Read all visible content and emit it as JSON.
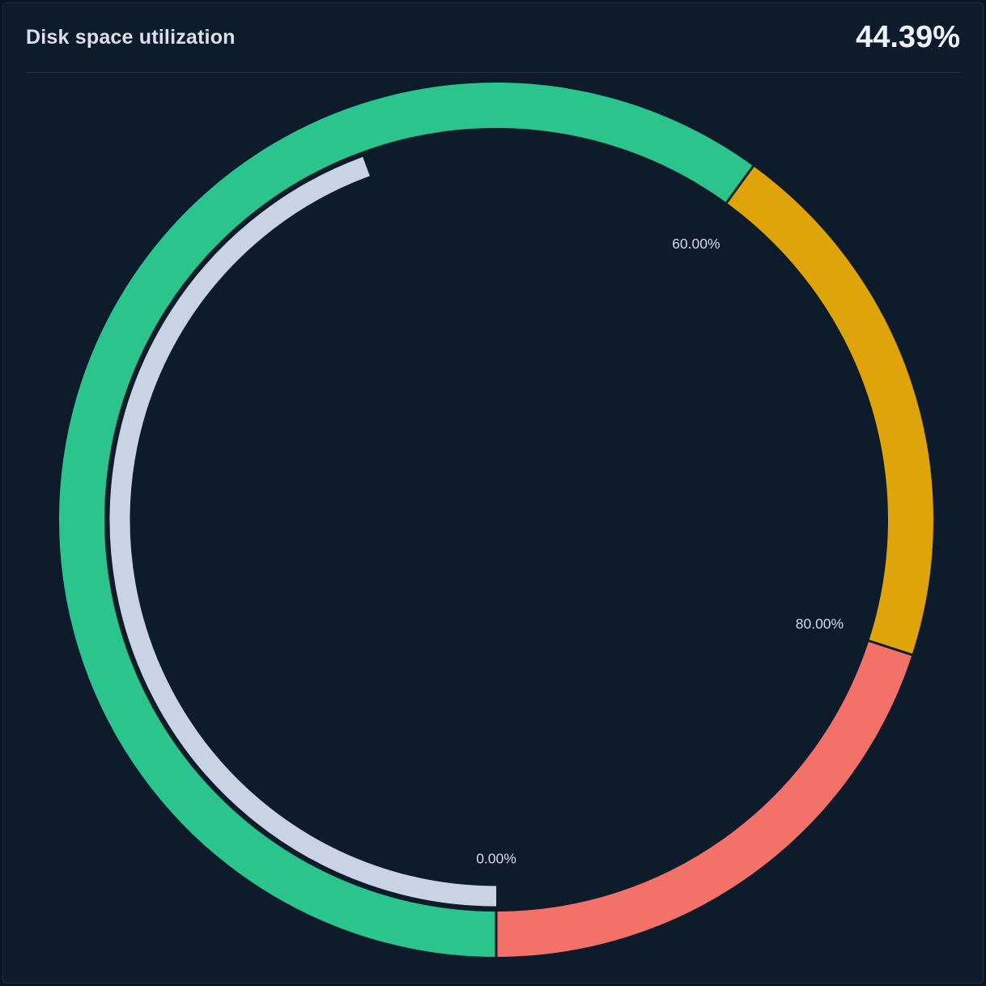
{
  "panel": {
    "title": "Disk space utilization",
    "value": "44.39%"
  },
  "colors": {
    "background": "#0d1b2b",
    "border": "#1f2d40",
    "title_text": "#d9e0ec",
    "value_text": "#eef2f8",
    "divider": "#223049"
  },
  "chart_data": {
    "type": "gauge",
    "title": "Disk space utilization",
    "value_percent": 44.39,
    "value_label": "44.39%",
    "min": 0,
    "max": 100,
    "start_position": "bottom",
    "direction": "clockwise",
    "full_circle": true,
    "thresholds": [
      {
        "from": 0,
        "to": 60,
        "color": "#2bc48c"
      },
      {
        "from": 60,
        "to": 80,
        "color": "#dfa40a"
      },
      {
        "from": 80,
        "to": 100,
        "color": "#f4716a"
      }
    ],
    "tick_labels": [
      {
        "percent": 0,
        "text": "0.00%"
      },
      {
        "percent": 60,
        "text": "60.00%"
      },
      {
        "percent": 80,
        "text": "80.00%"
      }
    ],
    "progress_color": "#c9d3e3",
    "label_color": "#d4dbe8",
    "gap_color": "#0d1b2b",
    "legend": "none",
    "grid": false
  }
}
